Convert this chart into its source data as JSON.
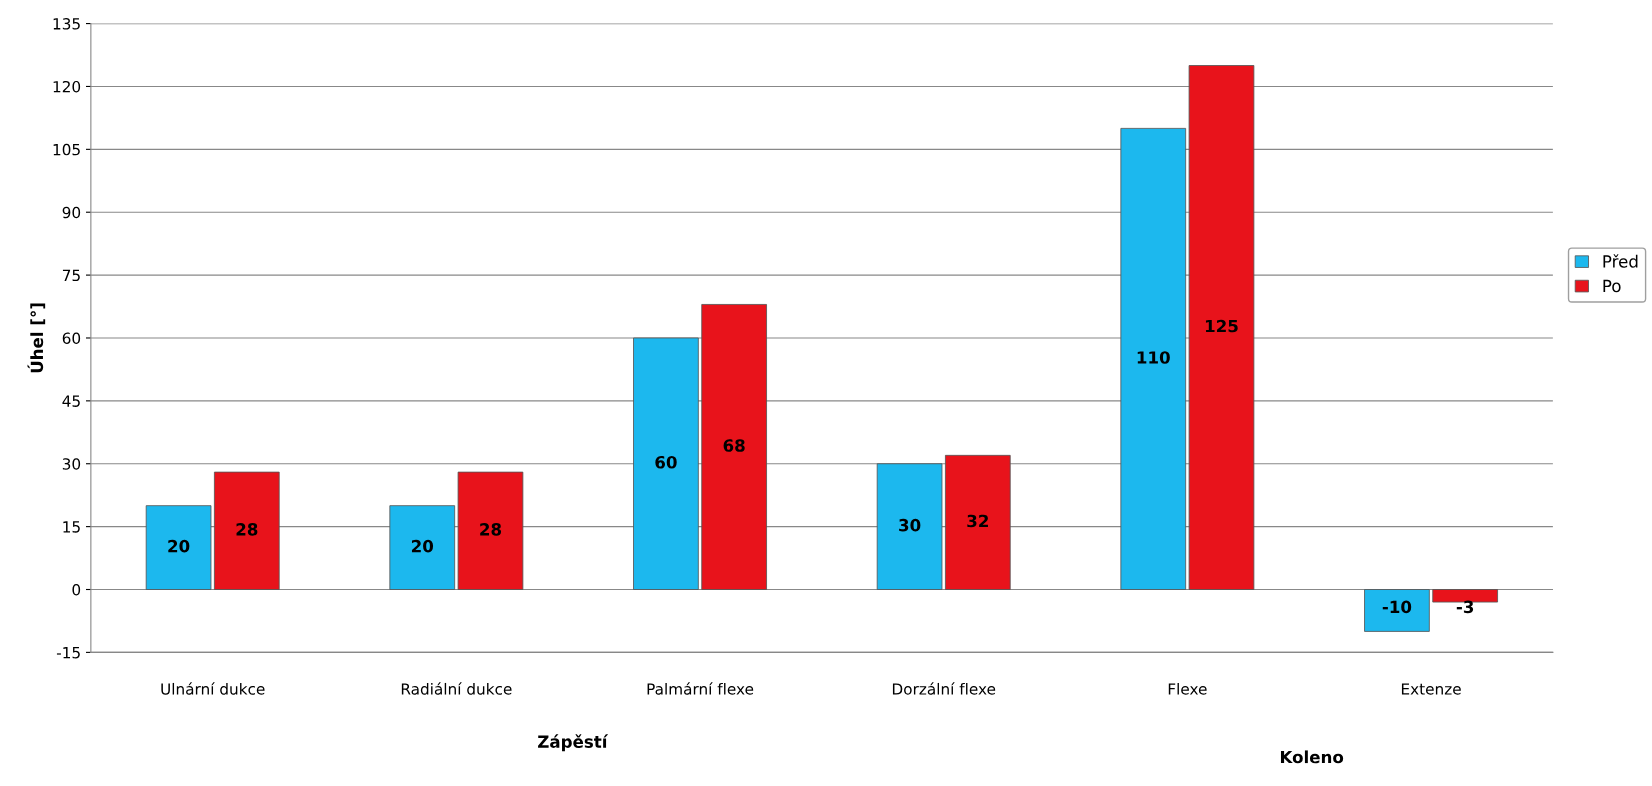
{
  "chart_data": {
    "type": "bar",
    "ylabel": "Úhel [°]",
    "categories": [
      "Ulnární dukce",
      "Radiální dukce",
      "Palmární flexe",
      "Dorzální flexe",
      "Flexe",
      "Extenze"
    ],
    "series": [
      {
        "name": "Před",
        "color": "#1cb8ee",
        "values": [
          20,
          20,
          60,
          30,
          110,
          -10
        ]
      },
      {
        "name": "Po",
        "color": "#e8131b",
        "values": [
          28,
          28,
          68,
          32,
          125,
          -3
        ]
      }
    ],
    "ylim": [
      -15,
      135
    ],
    "yticks": [
      -15,
      0,
      15,
      30,
      45,
      60,
      75,
      90,
      105,
      120,
      135
    ],
    "grid": "y",
    "legend": "right",
    "data_labels": true,
    "annotations": [
      "Zápěstí",
      "Koleno"
    ]
  }
}
